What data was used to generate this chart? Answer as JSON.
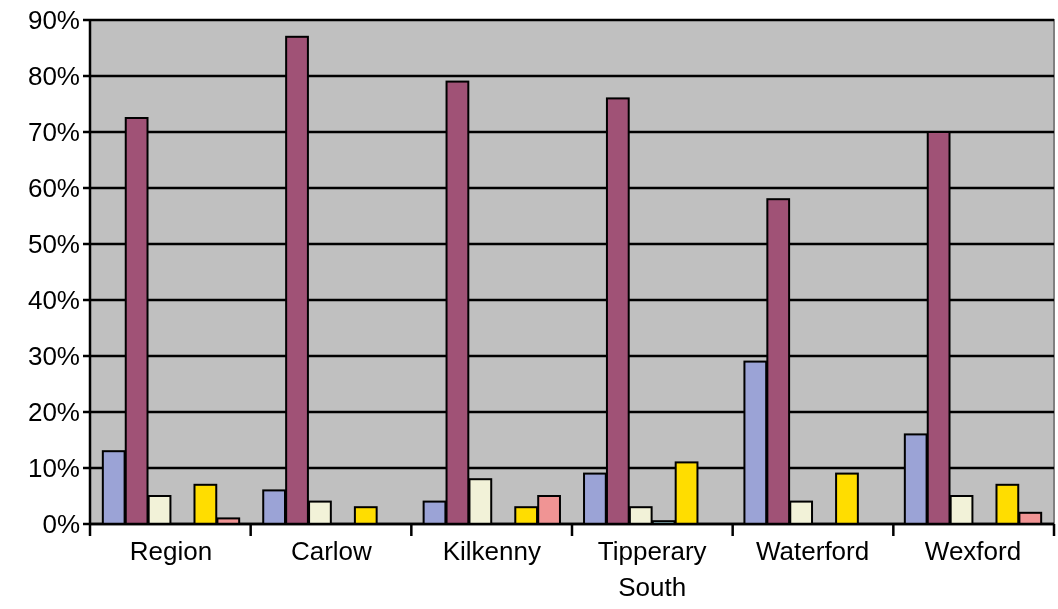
{
  "chart_data": {
    "type": "bar",
    "categories": [
      "Region",
      "Carlow",
      "Kilkenny",
      "Tipperary South",
      "Waterford",
      "Wexford"
    ],
    "series": [
      {
        "color": "#9ba3d6",
        "values": [
          13,
          6,
          4,
          9,
          29,
          16
        ]
      },
      {
        "color": "#a05276",
        "values": [
          72.5,
          87,
          79,
          76,
          58,
          70
        ]
      },
      {
        "color": "#f2f2d8",
        "values": [
          5,
          4,
          8,
          3,
          4,
          5
        ]
      },
      {
        "color": "#a8dce8",
        "values": [
          0,
          0,
          0,
          0.5,
          0,
          0
        ]
      },
      {
        "color": "#ffdd00",
        "values": [
          7,
          3,
          3,
          11,
          9,
          7
        ]
      },
      {
        "color": "#f09494",
        "values": [
          1,
          0,
          5,
          0,
          0,
          2
        ]
      }
    ],
    "ylim": [
      0,
      90
    ],
    "yticks": [
      {
        "value": 0,
        "label": "0%"
      },
      {
        "value": 10,
        "label": "10%"
      },
      {
        "value": 20,
        "label": "20%"
      },
      {
        "value": 30,
        "label": "30%"
      },
      {
        "value": 40,
        "label": "40%"
      },
      {
        "value": 50,
        "label": "50%"
      },
      {
        "value": 60,
        "label": "60%"
      },
      {
        "value": 70,
        "label": "70%"
      },
      {
        "value": 80,
        "label": "80%"
      },
      {
        "value": 90,
        "label": "90%"
      }
    ],
    "grid": "y"
  }
}
